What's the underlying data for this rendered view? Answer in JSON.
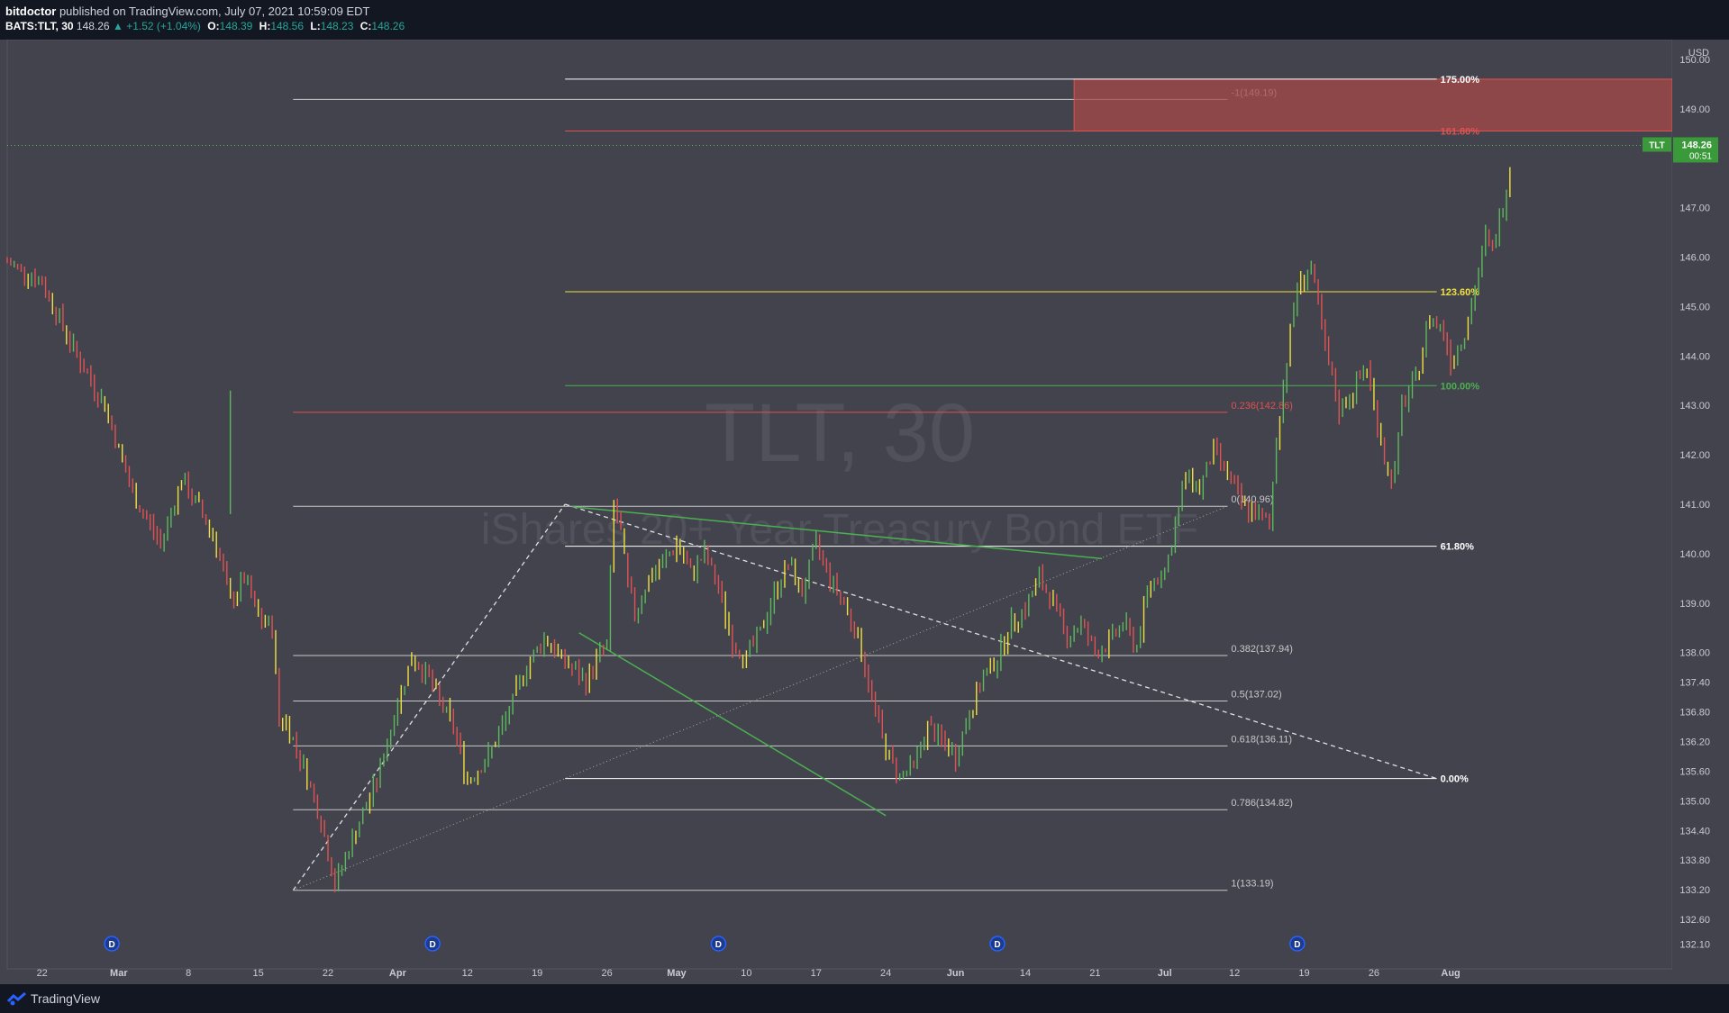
{
  "header": {
    "publisher": "bitdoctor",
    "published_text": "published on TradingView.com, July 07, 2021 10:59:09 EDT",
    "symbol": "BATS:TLT, 30",
    "last": "148.26",
    "change": "+1.52 (+1.04%)",
    "o_label": "O:",
    "o": "148.39",
    "h_label": "H:",
    "h": "148.56",
    "l_label": "L:",
    "l": "148.23",
    "c_label": "C:",
    "c": "148.26"
  },
  "footer": {
    "brand": "TradingView"
  },
  "colors": {
    "background": "#42434d",
    "up": "#5cb85c",
    "down": "#e05252",
    "yellow": "#f0e040",
    "green_line": "#4caf50",
    "red_zone": "#a84848"
  },
  "chart_data": {
    "type": "candlestick",
    "watermark_title": "TLT, 30",
    "watermark_subtitle": "iShares 20+ Year Treasury Bond ETF",
    "currency": "USD",
    "ylim": [
      131.6,
      150.4
    ],
    "y_ticks": [
      "150.00",
      "149.00",
      "148.00",
      "147.00",
      "146.00",
      "145.00",
      "144.00",
      "143.00",
      "142.00",
      "141.00",
      "140.00",
      "139.00",
      "138.00",
      "137.40",
      "136.80",
      "136.20",
      "135.60",
      "135.00",
      "134.40",
      "133.80",
      "133.20",
      "132.60",
      "132.10"
    ],
    "x_ticks": [
      "22",
      "Mar",
      "8",
      "15",
      "22",
      "Apr",
      "12",
      "19",
      "26",
      "May",
      "10",
      "17",
      "24",
      "Jun",
      "14",
      "21",
      "Jul",
      "12",
      "19",
      "26",
      "Aug"
    ],
    "dividend_markers": [
      "D",
      "D",
      "D",
      "D",
      "D"
    ],
    "last_price": {
      "symbol": "TLT",
      "price": "148.26",
      "countdown": "00:51"
    },
    "fib_retracement_labels": [
      "-1(149.19)",
      "0.236(142.86)",
      "0(140.96)",
      "0.382(137.94)",
      "0.5(137.02)",
      "0.618(136.11)",
      "0.786(134.82)",
      "1(133.19)"
    ],
    "fib_retracement_levels": [
      149.19,
      142.86,
      140.96,
      137.94,
      137.02,
      136.11,
      134.82,
      133.19
    ],
    "fib_extension_labels": [
      "175.00%",
      "161.80%",
      "123.60%",
      "100.00%",
      "61.80%",
      "0.00%"
    ],
    "fib_extension_levels": [
      149.6,
      148.55,
      145.3,
      143.4,
      140.15,
      135.45
    ],
    "price_path": [
      [
        0,
        145.9
      ],
      [
        5,
        145.5
      ],
      [
        10,
        144.0
      ],
      [
        14,
        143.0
      ],
      [
        18,
        141.2
      ],
      [
        22,
        140.2
      ],
      [
        25,
        141.5
      ],
      [
        28,
        140.8
      ],
      [
        30,
        140.2
      ],
      [
        32,
        139.0
      ],
      [
        34,
        139.5
      ],
      [
        36,
        138.7
      ],
      [
        38,
        138.5
      ],
      [
        39,
        136.6
      ],
      [
        40,
        136.6
      ],
      [
        43,
        135.5
      ],
      [
        45,
        134.6
      ],
      [
        47,
        133.3
      ],
      [
        50,
        134.4
      ],
      [
        53,
        135.4
      ],
      [
        56,
        137.0
      ],
      [
        58,
        137.9
      ],
      [
        60,
        137.6
      ],
      [
        62,
        137.0
      ],
      [
        64,
        136.5
      ],
      [
        66,
        135.4
      ],
      [
        69,
        135.9
      ],
      [
        72,
        136.8
      ],
      [
        74,
        137.6
      ],
      [
        77,
        138.3
      ],
      [
        80,
        137.8
      ],
      [
        83,
        137.4
      ],
      [
        85,
        138.0
      ],
      [
        86,
        138.1
      ],
      [
        87,
        141.0
      ],
      [
        88,
        140.4
      ],
      [
        89,
        139.3
      ],
      [
        90,
        138.8
      ],
      [
        92,
        139.5
      ],
      [
        94,
        139.8
      ],
      [
        96,
        140.2
      ],
      [
        98,
        139.6
      ],
      [
        100,
        140.0
      ],
      [
        102,
        139.3
      ],
      [
        104,
        138.2
      ],
      [
        106,
        137.9
      ],
      [
        108,
        138.4
      ],
      [
        110,
        139.2
      ],
      [
        112,
        139.8
      ],
      [
        114,
        139.2
      ],
      [
        116,
        140.2
      ],
      [
        118,
        139.5
      ],
      [
        120,
        139.0
      ],
      [
        122,
        138.3
      ],
      [
        124,
        137.1
      ],
      [
        126,
        136.0
      ],
      [
        128,
        135.5
      ],
      [
        130,
        135.7
      ],
      [
        132,
        136.5
      ],
      [
        134,
        136.2
      ],
      [
        136,
        135.9
      ],
      [
        138,
        136.8
      ],
      [
        140,
        137.5
      ],
      [
        142,
        137.9
      ],
      [
        144,
        138.6
      ],
      [
        146,
        138.9
      ],
      [
        148,
        139.5
      ],
      [
        150,
        139.0
      ],
      [
        152,
        138.3
      ],
      [
        154,
        138.6
      ],
      [
        156,
        138.0
      ],
      [
        158,
        138.2
      ],
      [
        160,
        138.6
      ],
      [
        162,
        138.1
      ],
      [
        163,
        138.9
      ],
      [
        164,
        139.4
      ],
      [
        166,
        139.7
      ],
      [
        167,
        140.2
      ],
      [
        169,
        141.6
      ],
      [
        171,
        141.3
      ],
      [
        173,
        142.1
      ],
      [
        175,
        141.6
      ],
      [
        177,
        141.0
      ],
      [
        179,
        140.8
      ],
      [
        181,
        140.6
      ],
      [
        182,
        142.3
      ],
      [
        184,
        144.5
      ],
      [
        185,
        145.4
      ],
      [
        187,
        145.8
      ],
      [
        189,
        144.1
      ],
      [
        191,
        142.9
      ],
      [
        193,
        143.3
      ],
      [
        195,
        143.8
      ],
      [
        196,
        143.0
      ],
      [
        197,
        142.3
      ],
      [
        198,
        141.6
      ],
      [
        199,
        141.6
      ],
      [
        200,
        143.0
      ],
      [
        202,
        143.5
      ],
      [
        204,
        144.8
      ],
      [
        206,
        144.5
      ],
      [
        207,
        143.9
      ],
      [
        209,
        144.5
      ],
      [
        210,
        145.0
      ],
      [
        212,
        146.4
      ],
      [
        213,
        146.1
      ],
      [
        215,
        147.4
      ],
      [
        216,
        148.26
      ]
    ],
    "x_range": [
      0,
      238
    ]
  }
}
